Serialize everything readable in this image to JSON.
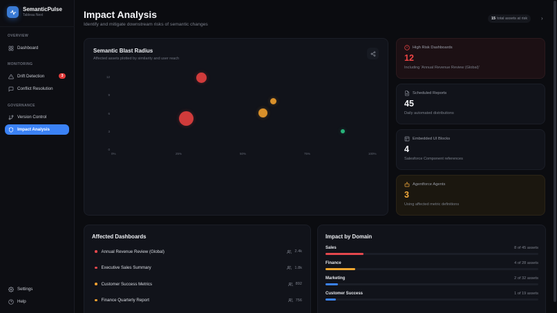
{
  "app": {
    "name": "SemanticPulse",
    "subtitle": "Tableau Next"
  },
  "sidebar": {
    "sections": [
      {
        "label": "OVERVIEW"
      },
      {
        "label": "MONITORING"
      },
      {
        "label": "GOVERNANCE"
      }
    ],
    "items": [
      {
        "label": "Dashboard",
        "icon": "grid-icon",
        "active": false
      },
      {
        "label": "Drift Detection",
        "icon": "warning-triangle-icon",
        "badge": "3",
        "active": false
      },
      {
        "label": "Conflict Resolution",
        "icon": "message-square-icon",
        "active": false
      },
      {
        "label": "Version Control",
        "icon": "git-branch-icon",
        "active": false
      },
      {
        "label": "Impact Analysis",
        "icon": "shield-icon",
        "active": true
      }
    ],
    "footer": [
      {
        "label": "Settings",
        "icon": "gear-icon"
      },
      {
        "label": "Help",
        "icon": "help-circle-icon"
      }
    ]
  },
  "header": {
    "title": "Impact Analysis",
    "subtitle": "Identify and mitigate downstream risks of semantic changes",
    "risk_count": "15",
    "risk_label": "total assets at risk"
  },
  "chart_card": {
    "title": "Semantic Blast Radius",
    "subtitle": "Affected assets plotted by similarity and user reach"
  },
  "chart_data": {
    "type": "scatter",
    "title": "Semantic Blast Radius",
    "subtitle": "Affected assets plotted by similarity and user reach",
    "xlabel": "",
    "ylabel": "",
    "x_ticks": [
      "0%",
      "25%",
      "50%",
      "75%",
      "100%"
    ],
    "y_ticks": [
      "0",
      "3",
      "6",
      "9",
      "12"
    ],
    "xlim": [
      0,
      100
    ],
    "ylim": [
      0,
      12
    ],
    "grid": false,
    "legend": "none",
    "points": [
      {
        "x": 34,
        "y": 12,
        "size": 15,
        "color": "#d03b3b"
      },
      {
        "x": 28,
        "y": 5.2,
        "size": 21,
        "color": "#d03b3b"
      },
      {
        "x": 58,
        "y": 6.1,
        "size": 13,
        "color": "#d9902a"
      },
      {
        "x": 62,
        "y": 8.1,
        "size": 9,
        "color": "#d9902a"
      },
      {
        "x": 89,
        "y": 3.1,
        "size": 6,
        "color": "#27b37a"
      }
    ]
  },
  "stats": [
    {
      "title": "High Risk Dashboards",
      "value": "12",
      "desc": "Including 'Annual Revenue Review (Global)'",
      "icon": "alert-circle-icon",
      "tone": "red"
    },
    {
      "title": "Scheduled Reports",
      "value": "45",
      "desc": "Daily automated distributions",
      "icon": "file-icon",
      "tone": "neutral"
    },
    {
      "title": "Embedded UI Blocks",
      "value": "4",
      "desc": "Salesforce Component references",
      "icon": "layout-icon",
      "tone": "neutral"
    },
    {
      "title": "Agentforce Agents",
      "value": "3",
      "desc": "Using affected metric definitions",
      "icon": "bot-icon",
      "tone": "amber"
    }
  ],
  "affected_dashboards": {
    "title": "Affected Dashboards",
    "rows": [
      {
        "name": "Annual Revenue Review (Global)",
        "users": "2.4k",
        "severity_color": "#e5484d"
      },
      {
        "name": "Executive Sales Summary",
        "users": "1.8k",
        "severity_color": "#e5484d"
      },
      {
        "name": "Customer Success Metrics",
        "users": "892",
        "severity_color": "#f0a030"
      },
      {
        "name": "Finance Quarterly Report",
        "users": "756",
        "severity_color": "#f0a030"
      }
    ]
  },
  "impact_by_domain": {
    "title": "Impact by Domain",
    "rows": [
      {
        "name": "Sales",
        "count": "8 of 45 assets",
        "pct": 18,
        "color": "#e5484d"
      },
      {
        "name": "Finance",
        "count": "4 of 28 assets",
        "pct": 14,
        "color": "#f0a830"
      },
      {
        "name": "Marketing",
        "count": "2 of 32 assets",
        "pct": 6,
        "color": "#3b82f6"
      },
      {
        "name": "Customer Success",
        "count": "1 of 19 assets",
        "pct": 5,
        "color": "#3b82f6"
      }
    ]
  },
  "colors": {
    "accent": "#3b82f6",
    "danger": "#ef4444",
    "warning": "#f2a93b",
    "success": "#27b37a",
    "background": "#0b0c10",
    "card": "#11131a"
  }
}
